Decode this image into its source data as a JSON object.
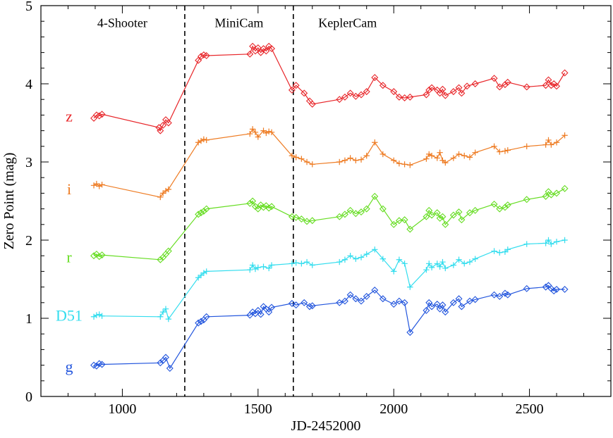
{
  "chart_data": {
    "type": "line",
    "title": "",
    "xlabel": "JD-2452000",
    "ylabel": "Zero Point (mag)",
    "xlim": [
      700,
      2800
    ],
    "ylim": [
      0,
      5
    ],
    "x_ticks": [
      1000,
      1500,
      2000,
      2500
    ],
    "x_tick_labels": [
      "1000",
      "1500",
      "2000",
      "2500"
    ],
    "y_ticks": [
      0,
      1,
      2,
      3,
      4,
      5
    ],
    "y_tick_labels": [
      "0",
      "1",
      "2",
      "3",
      "4",
      "5"
    ],
    "annotations": [
      {
        "text": "4-Shooter",
        "x": 1000,
        "y": 4.78
      },
      {
        "text": "MiniCam",
        "x": 1430,
        "y": 4.78
      },
      {
        "text": "KeplerCam",
        "x": 1830,
        "y": 4.78
      }
    ],
    "vlines": [
      1230,
      1630
    ],
    "series": [
      {
        "name": "z",
        "color": "#e8262a",
        "marker": "diamond",
        "label_y": 3.58,
        "points": [
          [
            895,
            3.56
          ],
          [
            905,
            3.6
          ],
          [
            915,
            3.59
          ],
          [
            925,
            3.61
          ],
          [
            1135,
            3.44
          ],
          [
            1140,
            3.4
          ],
          [
            1150,
            3.47
          ],
          [
            1160,
            3.54
          ],
          [
            1170,
            3.5
          ],
          [
            1280,
            4.3
          ],
          [
            1290,
            4.35
          ],
          [
            1300,
            4.37
          ],
          [
            1310,
            4.36
          ],
          [
            1470,
            4.38
          ],
          [
            1480,
            4.48
          ],
          [
            1490,
            4.42
          ],
          [
            1500,
            4.46
          ],
          [
            1510,
            4.4
          ],
          [
            1520,
            4.45
          ],
          [
            1530,
            4.42
          ],
          [
            1540,
            4.48
          ],
          [
            1550,
            4.45
          ],
          [
            1625,
            3.92
          ],
          [
            1640,
            3.98
          ],
          [
            1670,
            3.88
          ],
          [
            1690,
            3.78
          ],
          [
            1700,
            3.74
          ],
          [
            1800,
            3.8
          ],
          [
            1820,
            3.83
          ],
          [
            1840,
            3.88
          ],
          [
            1860,
            3.84
          ],
          [
            1880,
            3.86
          ],
          [
            1900,
            3.9
          ],
          [
            1930,
            4.08
          ],
          [
            1960,
            3.98
          ],
          [
            2000,
            3.9
          ],
          [
            2020,
            3.83
          ],
          [
            2040,
            3.82
          ],
          [
            2060,
            3.83
          ],
          [
            2120,
            3.86
          ],
          [
            2130,
            3.92
          ],
          [
            2140,
            3.95
          ],
          [
            2160,
            3.92
          ],
          [
            2170,
            3.88
          ],
          [
            2180,
            3.93
          ],
          [
            2190,
            3.85
          ],
          [
            2220,
            3.9
          ],
          [
            2240,
            3.95
          ],
          [
            2250,
            3.88
          ],
          [
            2270,
            3.97
          ],
          [
            2300,
            4.0
          ],
          [
            2370,
            4.07
          ],
          [
            2390,
            3.96
          ],
          [
            2410,
            3.99
          ],
          [
            2420,
            4.02
          ],
          [
            2490,
            3.96
          ],
          [
            2560,
            3.98
          ],
          [
            2570,
            4.05
          ],
          [
            2580,
            3.98
          ],
          [
            2590,
            4.0
          ],
          [
            2600,
            3.97
          ],
          [
            2630,
            4.14
          ]
        ]
      },
      {
        "name": "i",
        "color": "#ee7b22",
        "marker": "plus",
        "label_y": 2.65,
        "points": [
          [
            895,
            2.7
          ],
          [
            905,
            2.72
          ],
          [
            915,
            2.69
          ],
          [
            925,
            2.71
          ],
          [
            1140,
            2.55
          ],
          [
            1150,
            2.6
          ],
          [
            1160,
            2.63
          ],
          [
            1170,
            2.65
          ],
          [
            1280,
            3.25
          ],
          [
            1290,
            3.27
          ],
          [
            1300,
            3.29
          ],
          [
            1310,
            3.28
          ],
          [
            1470,
            3.36
          ],
          [
            1480,
            3.42
          ],
          [
            1490,
            3.38
          ],
          [
            1500,
            3.32
          ],
          [
            1520,
            3.4
          ],
          [
            1530,
            3.37
          ],
          [
            1540,
            3.39
          ],
          [
            1550,
            3.38
          ],
          [
            1625,
            3.08
          ],
          [
            1640,
            3.06
          ],
          [
            1660,
            3.04
          ],
          [
            1680,
            3.0
          ],
          [
            1700,
            2.97
          ],
          [
            1800,
            3.0
          ],
          [
            1820,
            3.02
          ],
          [
            1840,
            3.05
          ],
          [
            1860,
            3.02
          ],
          [
            1880,
            3.03
          ],
          [
            1900,
            3.08
          ],
          [
            1930,
            3.25
          ],
          [
            1960,
            3.1
          ],
          [
            2000,
            3.02
          ],
          [
            2020,
            2.98
          ],
          [
            2040,
            2.97
          ],
          [
            2060,
            2.96
          ],
          [
            2120,
            3.04
          ],
          [
            2130,
            3.1
          ],
          [
            2140,
            3.08
          ],
          [
            2160,
            3.05
          ],
          [
            2170,
            3.12
          ],
          [
            2180,
            3.02
          ],
          [
            2190,
            2.99
          ],
          [
            2220,
            3.05
          ],
          [
            2240,
            3.1
          ],
          [
            2260,
            3.08
          ],
          [
            2280,
            3.06
          ],
          [
            2300,
            3.12
          ],
          [
            2370,
            3.2
          ],
          [
            2390,
            3.13
          ],
          [
            2410,
            3.14
          ],
          [
            2420,
            3.15
          ],
          [
            2490,
            3.2
          ],
          [
            2560,
            3.22
          ],
          [
            2570,
            3.28
          ],
          [
            2580,
            3.22
          ],
          [
            2600,
            3.25
          ],
          [
            2630,
            3.34
          ]
        ]
      },
      {
        "name": "r",
        "color": "#66dd22",
        "marker": "diamond",
        "label_y": 1.78,
        "points": [
          [
            895,
            1.8
          ],
          [
            905,
            1.82
          ],
          [
            915,
            1.79
          ],
          [
            925,
            1.81
          ],
          [
            1140,
            1.75
          ],
          [
            1150,
            1.78
          ],
          [
            1160,
            1.82
          ],
          [
            1170,
            1.86
          ],
          [
            1280,
            2.33
          ],
          [
            1290,
            2.35
          ],
          [
            1300,
            2.37
          ],
          [
            1310,
            2.4
          ],
          [
            1470,
            2.47
          ],
          [
            1480,
            2.5
          ],
          [
            1490,
            2.43
          ],
          [
            1500,
            2.4
          ],
          [
            1510,
            2.45
          ],
          [
            1520,
            2.42
          ],
          [
            1530,
            2.44
          ],
          [
            1540,
            2.41
          ],
          [
            1550,
            2.43
          ],
          [
            1625,
            2.3
          ],
          [
            1640,
            2.29
          ],
          [
            1660,
            2.27
          ],
          [
            1680,
            2.24
          ],
          [
            1700,
            2.25
          ],
          [
            1800,
            2.3
          ],
          [
            1820,
            2.33
          ],
          [
            1840,
            2.38
          ],
          [
            1860,
            2.34
          ],
          [
            1880,
            2.36
          ],
          [
            1900,
            2.4
          ],
          [
            1930,
            2.56
          ],
          [
            1960,
            2.4
          ],
          [
            2000,
            2.2
          ],
          [
            2020,
            2.25
          ],
          [
            2040,
            2.26
          ],
          [
            2060,
            2.14
          ],
          [
            2120,
            2.3
          ],
          [
            2130,
            2.38
          ],
          [
            2140,
            2.32
          ],
          [
            2160,
            2.35
          ],
          [
            2170,
            2.28
          ],
          [
            2180,
            2.3
          ],
          [
            2190,
            2.2
          ],
          [
            2220,
            2.32
          ],
          [
            2240,
            2.36
          ],
          [
            2250,
            2.26
          ],
          [
            2280,
            2.35
          ],
          [
            2300,
            2.38
          ],
          [
            2370,
            2.46
          ],
          [
            2390,
            2.4
          ],
          [
            2410,
            2.42
          ],
          [
            2420,
            2.45
          ],
          [
            2490,
            2.52
          ],
          [
            2560,
            2.56
          ],
          [
            2570,
            2.62
          ],
          [
            2580,
            2.58
          ],
          [
            2600,
            2.6
          ],
          [
            2630,
            2.66
          ]
        ]
      },
      {
        "name": "D51",
        "color": "#33ddee",
        "marker": "plus",
        "label_y": 1.03,
        "points": [
          [
            895,
            1.02
          ],
          [
            905,
            1.04
          ],
          [
            915,
            1.05
          ],
          [
            925,
            1.03
          ],
          [
            1140,
            1.02
          ],
          [
            1150,
            1.08
          ],
          [
            1160,
            1.12
          ],
          [
            1170,
            0.99
          ],
          [
            1280,
            1.52
          ],
          [
            1290,
            1.55
          ],
          [
            1300,
            1.58
          ],
          [
            1310,
            1.6
          ],
          [
            1470,
            1.62
          ],
          [
            1480,
            1.68
          ],
          [
            1490,
            1.63
          ],
          [
            1500,
            1.65
          ],
          [
            1520,
            1.66
          ],
          [
            1540,
            1.64
          ],
          [
            1550,
            1.68
          ],
          [
            1625,
            1.7
          ],
          [
            1640,
            1.71
          ],
          [
            1660,
            1.7
          ],
          [
            1680,
            1.72
          ],
          [
            1700,
            1.68
          ],
          [
            1800,
            1.72
          ],
          [
            1820,
            1.75
          ],
          [
            1840,
            1.8
          ],
          [
            1860,
            1.76
          ],
          [
            1880,
            1.78
          ],
          [
            1900,
            1.82
          ],
          [
            1930,
            1.88
          ],
          [
            1960,
            1.76
          ],
          [
            2000,
            1.6
          ],
          [
            2020,
            1.75
          ],
          [
            2040,
            1.7
          ],
          [
            2060,
            1.4
          ],
          [
            2120,
            1.62
          ],
          [
            2130,
            1.7
          ],
          [
            2140,
            1.65
          ],
          [
            2160,
            1.7
          ],
          [
            2170,
            1.66
          ],
          [
            2180,
            1.72
          ],
          [
            2190,
            1.64
          ],
          [
            2220,
            1.68
          ],
          [
            2240,
            1.75
          ],
          [
            2260,
            1.7
          ],
          [
            2280,
            1.72
          ],
          [
            2300,
            1.76
          ],
          [
            2370,
            1.86
          ],
          [
            2390,
            1.84
          ],
          [
            2410,
            1.85
          ],
          [
            2420,
            1.88
          ],
          [
            2490,
            1.95
          ],
          [
            2560,
            1.96
          ],
          [
            2570,
            2.0
          ],
          [
            2580,
            1.95
          ],
          [
            2600,
            1.98
          ],
          [
            2630,
            2.0
          ]
        ]
      },
      {
        "name": "g",
        "color": "#2255dd",
        "marker": "diamond",
        "label_y": 0.38,
        "points": [
          [
            895,
            0.4
          ],
          [
            905,
            0.39
          ],
          [
            915,
            0.42
          ],
          [
            925,
            0.41
          ],
          [
            1140,
            0.43
          ],
          [
            1150,
            0.46
          ],
          [
            1160,
            0.5
          ],
          [
            1175,
            0.36
          ],
          [
            1280,
            0.94
          ],
          [
            1290,
            0.96
          ],
          [
            1300,
            0.98
          ],
          [
            1310,
            1.02
          ],
          [
            1470,
            1.04
          ],
          [
            1480,
            1.08
          ],
          [
            1490,
            1.06
          ],
          [
            1500,
            1.1
          ],
          [
            1510,
            1.05
          ],
          [
            1520,
            1.15
          ],
          [
            1530,
            1.12
          ],
          [
            1540,
            1.08
          ],
          [
            1550,
            1.14
          ],
          [
            1625,
            1.19
          ],
          [
            1640,
            1.17
          ],
          [
            1670,
            1.2
          ],
          [
            1690,
            1.15
          ],
          [
            1700,
            1.16
          ],
          [
            1800,
            1.2
          ],
          [
            1820,
            1.22
          ],
          [
            1840,
            1.3
          ],
          [
            1860,
            1.25
          ],
          [
            1880,
            1.22
          ],
          [
            1900,
            1.28
          ],
          [
            1930,
            1.36
          ],
          [
            1960,
            1.25
          ],
          [
            2000,
            1.18
          ],
          [
            2020,
            1.22
          ],
          [
            2040,
            1.2
          ],
          [
            2060,
            0.82
          ],
          [
            2120,
            1.1
          ],
          [
            2130,
            1.2
          ],
          [
            2140,
            1.15
          ],
          [
            2160,
            1.18
          ],
          [
            2170,
            1.12
          ],
          [
            2180,
            1.17
          ],
          [
            2190,
            1.08
          ],
          [
            2220,
            1.2
          ],
          [
            2240,
            1.25
          ],
          [
            2250,
            1.15
          ],
          [
            2280,
            1.22
          ],
          [
            2300,
            1.24
          ],
          [
            2370,
            1.3
          ],
          [
            2390,
            1.28
          ],
          [
            2410,
            1.32
          ],
          [
            2420,
            1.3
          ],
          [
            2490,
            1.38
          ],
          [
            2560,
            1.4
          ],
          [
            2570,
            1.42
          ],
          [
            2580,
            1.38
          ],
          [
            2590,
            1.35
          ],
          [
            2600,
            1.37
          ],
          [
            2630,
            1.37
          ]
        ]
      }
    ]
  }
}
